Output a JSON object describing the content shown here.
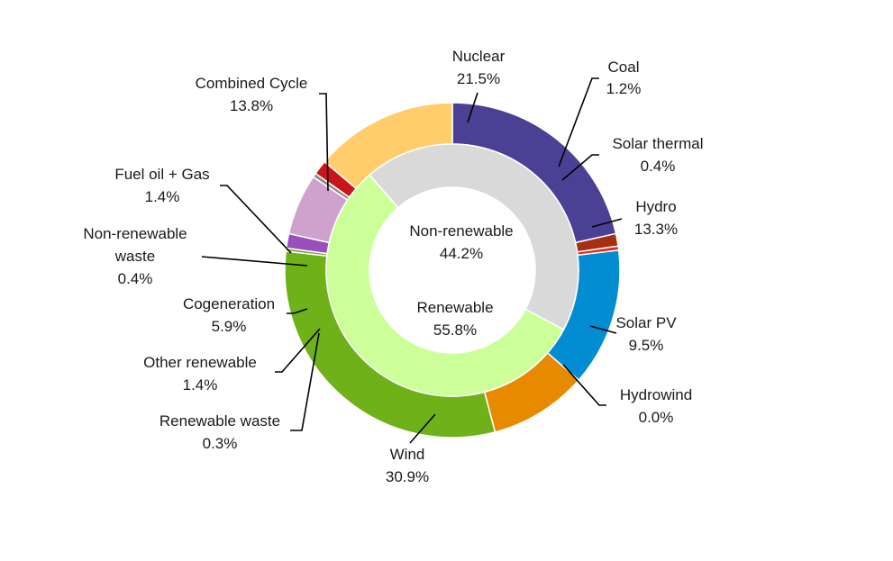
{
  "chart_data": {
    "type": "pie",
    "title": "",
    "outer_ring": {
      "slices": [
        {
          "name": "Nuclear",
          "value": 21.5,
          "label": "21.5%",
          "color": "#4a4194"
        },
        {
          "name": "Coal",
          "value": 1.2,
          "label": "1.2%",
          "color": "#a5300f"
        },
        {
          "name": "Solar thermal",
          "value": 0.4,
          "label": "0.4%",
          "color": "#e0261e"
        },
        {
          "name": "Hydro",
          "value": 13.3,
          "label": "13.3%",
          "color": "#028cd1"
        },
        {
          "name": "Solar PV",
          "value": 9.5,
          "label": "9.5%",
          "color": "#e88a00"
        },
        {
          "name": "Hydrowind",
          "value": 0.0,
          "label": "0.0%",
          "color": "#3a7a9a"
        },
        {
          "name": "Wind",
          "value": 30.9,
          "label": "30.9%",
          "color": "#6fb118"
        },
        {
          "name": "Renewable waste",
          "value": 0.3,
          "label": "0.3%",
          "color": "#7aa832"
        },
        {
          "name": "Other renewable",
          "value": 1.4,
          "label": "1.4%",
          "color": "#9a4fbd"
        },
        {
          "name": "Cogeneration",
          "value": 5.9,
          "label": "5.9%",
          "color": "#cfa2ce"
        },
        {
          "name": "Non-renewable waste",
          "value": 0.4,
          "label": "0.4%",
          "color": "#8c8c8c"
        },
        {
          "name": "Fuel oil + Gas",
          "value": 1.4,
          "label": "1.4%",
          "color": "#c8151d"
        },
        {
          "name": "Combined Cycle",
          "value": 13.8,
          "label": "13.8%",
          "color": "#ffcd6b"
        }
      ]
    },
    "inner_ring": {
      "slices": [
        {
          "name": "Non-renewable",
          "value": 44.2,
          "label": "44.2%",
          "color": "#d9d9d9"
        },
        {
          "name": "Renewable",
          "value": 55.8,
          "label": "55.8%",
          "color": "#ccff99"
        }
      ]
    },
    "legend": "none"
  }
}
